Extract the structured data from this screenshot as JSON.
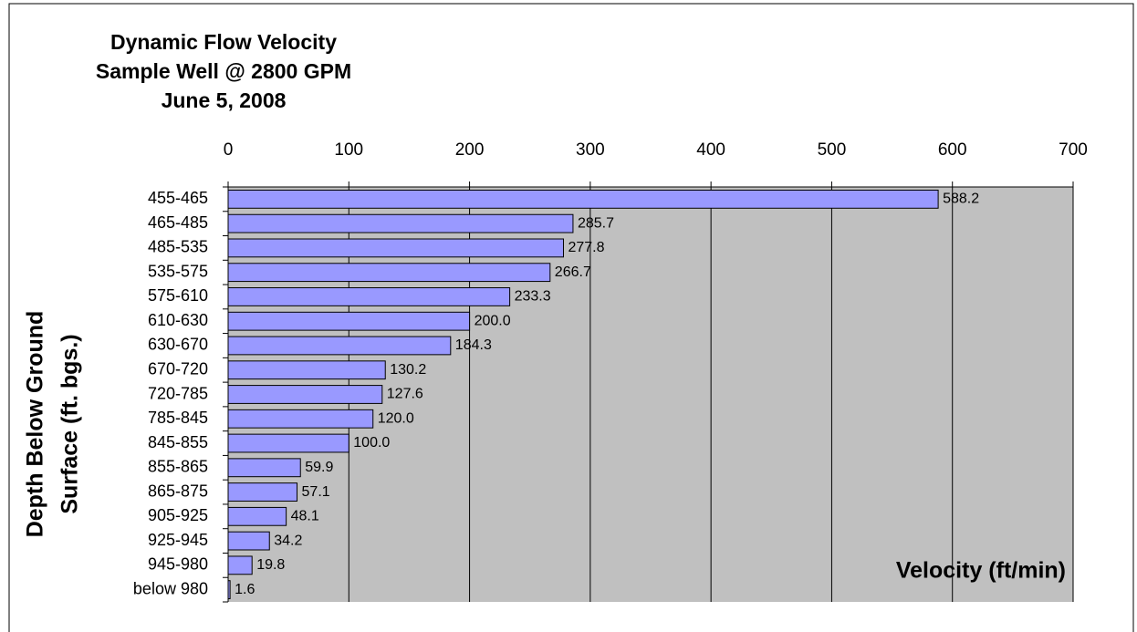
{
  "chart_data": {
    "type": "barh",
    "title": "Dynamic Flow Velocity",
    "subtitle": [
      "Sample Well @ 2800 GPM",
      "June 5, 2008"
    ],
    "y_label": [
      "Depth Below Ground",
      "Surface (ft. bgs.)"
    ],
    "x_label": "Velocity (ft/min)",
    "categories": [
      "455-465",
      "465-485",
      "485-535",
      "535-575",
      "575-610",
      "610-630",
      "630-670",
      "670-720",
      "720-785",
      "785-845",
      "845-855",
      "855-865",
      "865-875",
      "905-925",
      "925-945",
      "945-980",
      "below 980"
    ],
    "values": [
      588.2,
      285.7,
      277.8,
      266.7,
      233.3,
      200.0,
      184.3,
      130.2,
      127.6,
      120.0,
      100.0,
      59.9,
      57.1,
      48.1,
      34.2,
      19.8,
      1.6
    ],
    "value_labels": [
      "588.2",
      "285.7",
      "277.8",
      "266.7",
      "233.3",
      "200.0",
      "184.3",
      "130.2",
      "127.6",
      "120.0",
      "100.0",
      "59.9",
      "57.1",
      "48.1",
      "34.2",
      "19.8",
      "1.6"
    ],
    "color": "#9999ff",
    "plot_background": "#c0c0c0",
    "xlim": [
      0,
      700
    ],
    "xticks": [
      0,
      100,
      200,
      300,
      400,
      500,
      600,
      700
    ],
    "grid": true
  }
}
